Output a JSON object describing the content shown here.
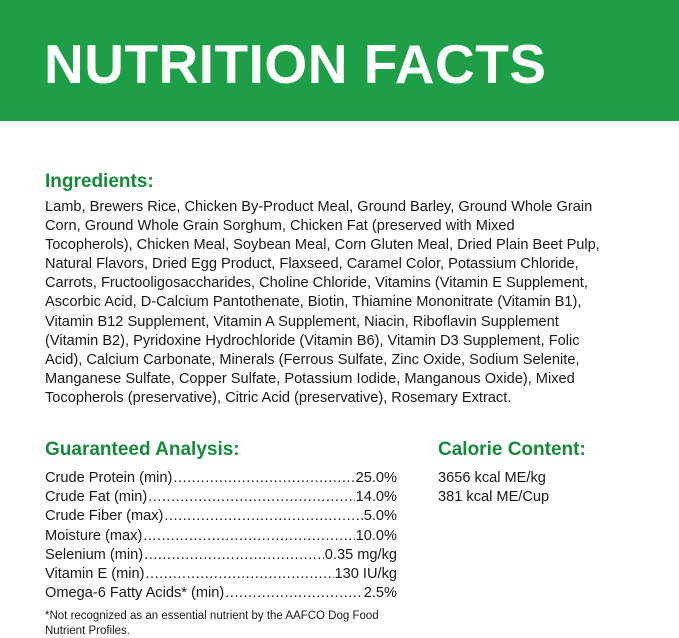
{
  "header": {
    "title": "NUTRITION FACTS",
    "color": "#1f9e48"
  },
  "ingredients": {
    "heading": "Ingredients:",
    "lines": [
      "Lamb, Brewers Rice, Chicken By-Product Meal, Ground Barley, Ground Whole Grain",
      "Corn, Ground Whole Grain Sorghum, Chicken Fat (preserved with Mixed",
      "Tocopherols), Chicken Meal, Soybean Meal, Corn Gluten Meal, Dried Plain Beet Pulp,",
      "Natural Flavors, Dried Egg Product, Flaxseed, Caramel Color, Potassium Chloride,",
      "Carrots, Fructooligosaccharides, Choline Chloride, Vitamins (Vitamin E Supplement,",
      "Ascorbic Acid, D-Calcium Pantothenate, Biotin, Thiamine Mononitrate (Vitamin B1),",
      "Vitamin B12 Supplement, Vitamin A Supplement, Niacin, Riboflavin Supplement",
      "(Vitamin B2), Pyridoxine Hydrochloride (Vitamin B6), Vitamin D3 Supplement, Folic",
      "Acid), Calcium Carbonate, Minerals (Ferrous Sulfate, Zinc Oxide, Sodium Selenite,",
      "Manganese Sulfate, Copper Sulfate, Potassium Iodide, Manganous Oxide), Mixed",
      "Tocopherols (preservative), Citric Acid (preservative), Rosemary Extract."
    ]
  },
  "analysis": {
    "heading": "Guaranteed Analysis:",
    "rows": [
      {
        "label": "Crude Protein (min)",
        "value": "25.0%"
      },
      {
        "label": "Crude Fat (min)",
        "value": "14.0%"
      },
      {
        "label": "Crude Fiber (max)",
        "value": "5.0%"
      },
      {
        "label": "Moisture (max)",
        "value": "10.0%"
      },
      {
        "label": "Selenium (min)",
        "value": "0.35 mg/kg"
      },
      {
        "label": "Vitamin E (min)",
        "value": "130 IU/kg"
      },
      {
        "label": "Omega-6 Fatty Acids* (min)",
        "value": "2.5%"
      }
    ],
    "footnote": "*Not recognized as an essential nutrient by the AAFCO Dog Food Nutrient Profiles."
  },
  "calorie": {
    "heading": "Calorie Content:",
    "lines": [
      "3656 kcal ME/kg",
      "381 kcal ME/Cup"
    ]
  },
  "accent_color": "#178a3a"
}
